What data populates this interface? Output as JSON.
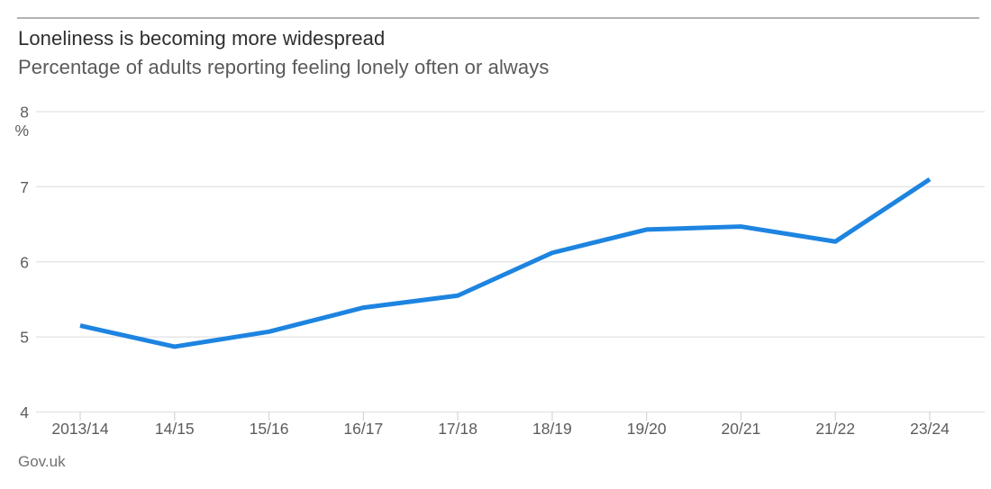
{
  "header": {
    "title": "Loneliness is becoming more widespread",
    "subtitle": "Percentage of adults reporting feeling lonely often or always"
  },
  "footer": {
    "source": "Gov.uk"
  },
  "chart_data": {
    "type": "line",
    "title": "Loneliness is becoming more widespread",
    "subtitle": "Percentage of adults reporting feeling lonely often or always",
    "categories": [
      "2013/14",
      "14/15",
      "15/16",
      "16/17",
      "17/18",
      "18/19",
      "19/20",
      "20/21",
      "21/22",
      "23/24"
    ],
    "values": [
      5.15,
      4.87,
      5.07,
      5.39,
      5.55,
      6.12,
      6.43,
      6.47,
      6.27,
      7.1
    ],
    "xlabel": "",
    "ylabel": "%",
    "yticks": [
      8,
      7,
      6,
      5,
      4
    ],
    "ylim": [
      4,
      8
    ],
    "grid": "horizontal",
    "legend": "none",
    "line_color": "#1d84e0",
    "gridline_color": "#e2e2e2",
    "tick_color": "#d8d8d8",
    "axis_text_color": "#5c5c5c",
    "source": "Gov.uk"
  }
}
